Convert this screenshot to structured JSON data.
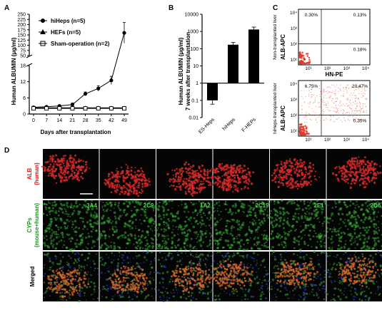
{
  "panel_labels": {
    "a": "A",
    "b": "B",
    "c": "C",
    "d": "D"
  },
  "chart_data": [
    {
      "id": "A",
      "type": "line",
      "ylabel": "Human ALBUMIN (μg/ml)",
      "xlabel": "Days after transplantation",
      "x": [
        0,
        7,
        14,
        21,
        28,
        35,
        42,
        49
      ],
      "upper_ticks": [
        "50",
        "75",
        "100",
        "125",
        "150",
        "175",
        "200",
        "225",
        "250"
      ],
      "lower_ticks": [
        "0",
        "6",
        "12",
        "18"
      ],
      "x_ticks": [
        "0",
        "7",
        "14",
        "21",
        "28",
        "35",
        "42",
        "49"
      ],
      "broken_axis": true,
      "series": [
        {
          "name": "hiHeps (n=5)",
          "marker": "circle",
          "values": [
            2.5,
            2.7,
            3.0,
            3.5,
            7.5,
            9.5,
            12.5,
            160
          ],
          "errors": [
            0.3,
            0.3,
            0.3,
            0.6,
            0.7,
            1.0,
            1.5,
            50
          ]
        },
        {
          "name": "HEFs (n=5)",
          "marker": "triangle",
          "values": [
            2.3,
            2.3,
            2.3,
            2.3,
            2.3,
            2.3,
            2.3,
            2.3
          ],
          "errors": [
            0.4,
            0.4,
            0.4,
            0.4,
            0.4,
            0.4,
            0.4,
            0.4
          ]
        },
        {
          "name": "Sham-operation (n=2)",
          "marker": "square",
          "values": [
            2.1,
            2.1,
            2.1,
            2.1,
            2.1,
            2.1,
            2.1,
            2.1
          ],
          "errors": [
            0.3,
            0.3,
            0.3,
            0.3,
            0.3,
            0.3,
            0.3,
            0.3
          ]
        }
      ]
    },
    {
      "id": "B",
      "type": "bar",
      "ylabel": "Human ALBUMIN (μg/ml)",
      "ylabel2": "7 weeks after transplantation",
      "y_scale": "log",
      "ylim": [
        0.01,
        10000
      ],
      "y_ticks": [
        "10000",
        "1000",
        "100",
        "10",
        "1",
        "0.1",
        "0.01"
      ],
      "categories": [
        "ES-Heps",
        "hiHeps",
        "F-HEPs"
      ],
      "values": [
        0.1,
        170,
        1300
      ],
      "error_bounds": [
        [
          0.06,
          0.1
        ],
        [
          170,
          230
        ],
        [
          1300,
          1800
        ]
      ],
      "baseline": 1
    }
  ],
  "flow": {
    "ylabel": "ALB-APC",
    "xlabel": "HN-PE",
    "y_ticks": [
      "10⁴",
      "10³",
      "10²",
      "10¹"
    ],
    "x_ticks": [
      "10¹",
      "10²",
      "10³",
      "10⁴"
    ],
    "plots": [
      {
        "row_label": "Non-transplanted liver",
        "ul": "0.30%",
        "ur": "0.13%",
        "lr": "0.18%"
      },
      {
        "row_label": "hiHeps-transplanted liver",
        "ul": "6.75%",
        "ur": "20.47%",
        "lr": "0.35%"
      }
    ]
  },
  "micrographs": {
    "rows": [
      {
        "label1": "ALB",
        "label2": "(human)",
        "color": "#d81e1e"
      },
      {
        "label1": "CYPs",
        "label2": "(mouse+human)",
        "color": "#1a9a1a"
      },
      {
        "label1": "Merged",
        "label2": "",
        "color": "#000000"
      }
    ],
    "cyp_labels": [
      "3A4",
      "2C9",
      "1A2",
      "2C19",
      "2E1",
      "2D6"
    ]
  }
}
